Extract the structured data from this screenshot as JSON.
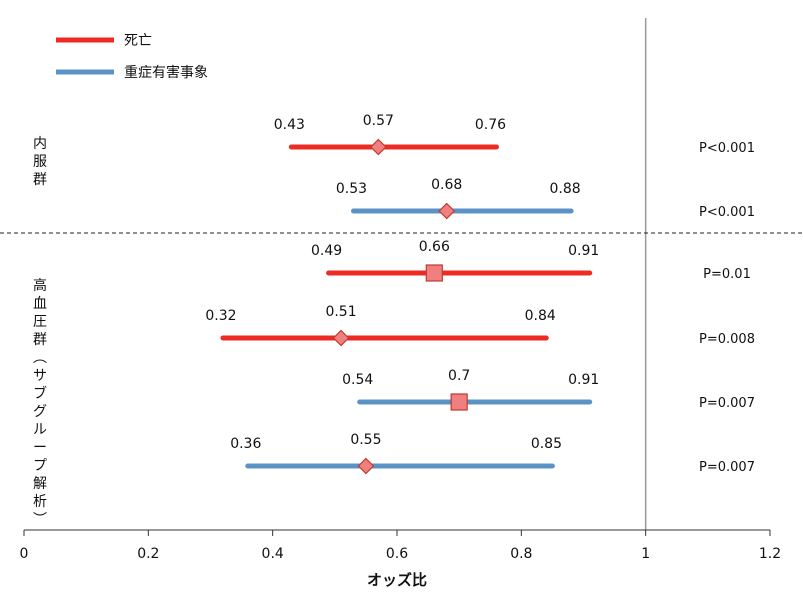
{
  "chart_data": {
    "type": "forest",
    "xlabel": "オッズ比",
    "xlim": [
      0,
      1.2
    ],
    "xticks": [
      "0",
      "0.2",
      "0.4",
      "0.6",
      "0.8",
      "1",
      "1.2"
    ],
    "reference_line": 1,
    "legend": [
      {
        "name": "死亡",
        "color": "#ee2a24"
      },
      {
        "name": "重症有害事象",
        "color": "#5b93c7"
      }
    ],
    "groups": [
      {
        "label": "内服群",
        "rows": [
          0,
          1
        ]
      },
      {
        "label": "高血圧群(サブグループ解析)",
        "rows": [
          2,
          3,
          4,
          5
        ]
      }
    ],
    "rows": [
      {
        "series": "死亡",
        "lower": 0.43,
        "est": 0.57,
        "upper": 0.76,
        "marker": "diamond",
        "lower_label": "0.43",
        "est_label": "0.57",
        "upper_label": "0.76",
        "p": "P<0.001"
      },
      {
        "series": "重症有害事象",
        "lower": 0.53,
        "est": 0.68,
        "upper": 0.88,
        "marker": "diamond",
        "lower_label": "0.53",
        "est_label": "0.68",
        "upper_label": "0.88",
        "p": "P<0.001"
      },
      {
        "series": "死亡",
        "lower": 0.49,
        "est": 0.66,
        "upper": 0.91,
        "marker": "square",
        "lower_label": "0.49",
        "est_label": "0.66",
        "upper_label": "0.91",
        "p": "P=0.01"
      },
      {
        "series": "死亡",
        "lower": 0.32,
        "est": 0.51,
        "upper": 0.84,
        "marker": "diamond",
        "lower_label": "0.32",
        "est_label": "0.51",
        "upper_label": "0.84",
        "p": "P=0.008"
      },
      {
        "series": "重症有害事象",
        "lower": 0.54,
        "est": 0.7,
        "upper": 0.91,
        "marker": "square",
        "lower_label": "0.54",
        "est_label": "0.7",
        "upper_label": "0.91",
        "p": "P=0.007"
      },
      {
        "series": "重症有害事象",
        "lower": 0.36,
        "est": 0.55,
        "upper": 0.85,
        "marker": "diamond",
        "lower_label": "0.36",
        "est_label": "0.55",
        "upper_label": "0.85",
        "p": "P=0.007"
      }
    ]
  }
}
